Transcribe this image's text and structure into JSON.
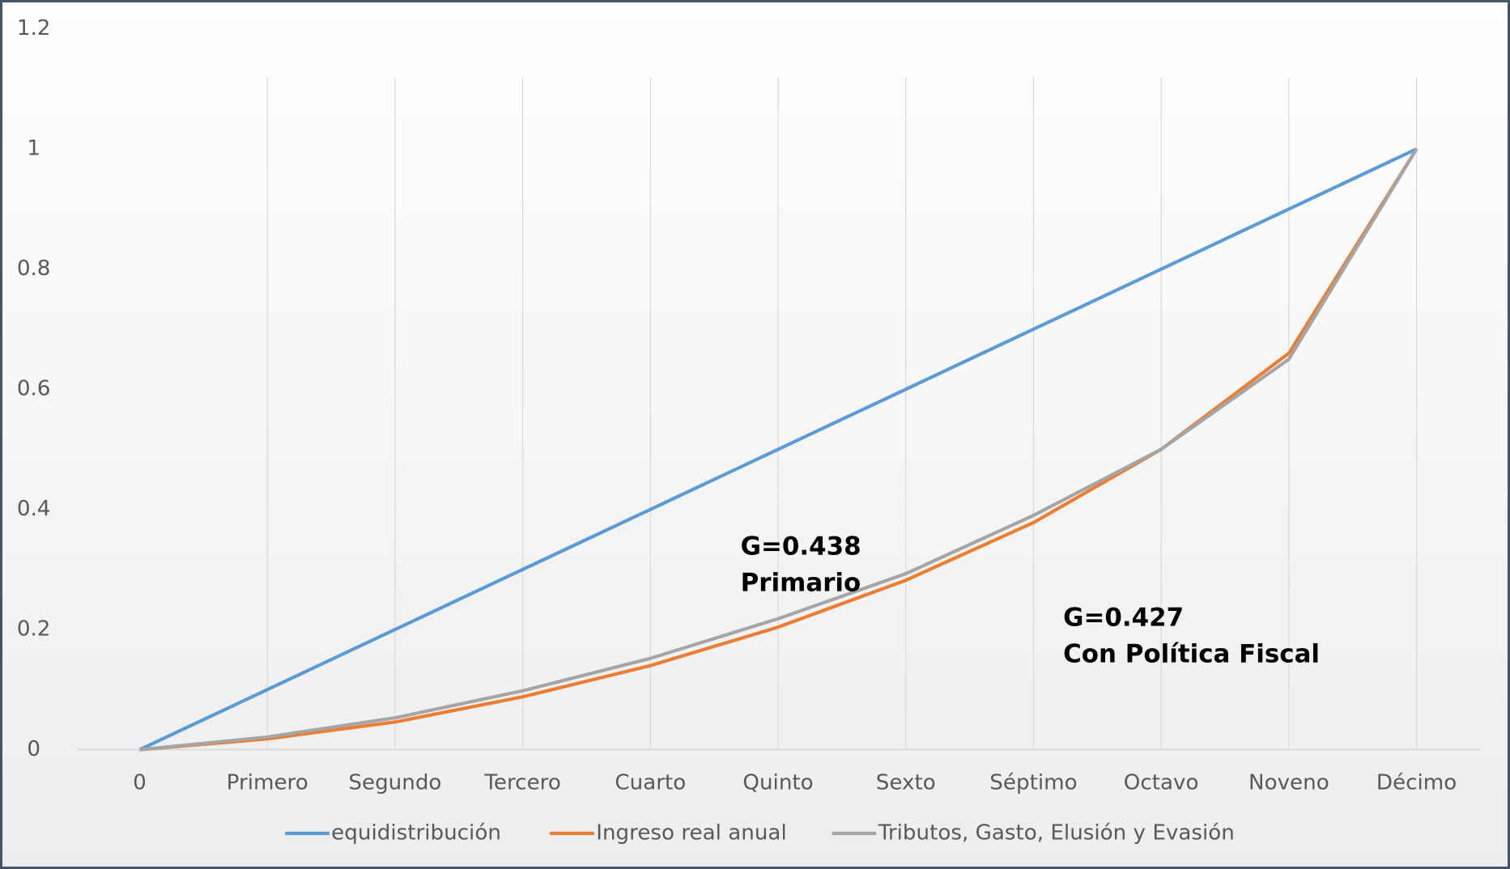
{
  "chart_data": {
    "type": "line",
    "categories": [
      "0",
      "Primero",
      "Segundo",
      "Tercero",
      "Cuarto",
      "Quinto",
      "Sexto",
      "Séptimo",
      "Octavo",
      "Noveno",
      "Décimo"
    ],
    "series": [
      {
        "name": "equidistribución",
        "color": "#5b9bd5",
        "values": [
          0,
          0.1,
          0.2,
          0.3,
          0.4,
          0.5,
          0.6,
          0.7,
          0.8,
          0.9,
          1
        ]
      },
      {
        "name": "Ingreso real anual",
        "color": "#ed7d31",
        "values": [
          0,
          0.018,
          0.046,
          0.088,
          0.14,
          0.204,
          0.282,
          0.378,
          0.5,
          0.66,
          1
        ]
      },
      {
        "name": "Tributos, Gasto, Elusión y Evasión",
        "color": "#a5a5a5",
        "values": [
          0,
          0.021,
          0.053,
          0.098,
          0.152,
          0.218,
          0.293,
          0.39,
          0.5,
          0.65,
          1
        ]
      }
    ],
    "ylim": [
      0,
      1.2
    ],
    "yticks": [
      0,
      0.2,
      0.4,
      0.6,
      0.8,
      1,
      1.2
    ],
    "grid": "vertical",
    "legend": "bottom",
    "annotations": [
      {
        "lines": [
          "G=0.438",
          "Primario"
        ]
      },
      {
        "lines": [
          "G=0.427",
          "Con Política Fiscal"
        ]
      }
    ]
  }
}
